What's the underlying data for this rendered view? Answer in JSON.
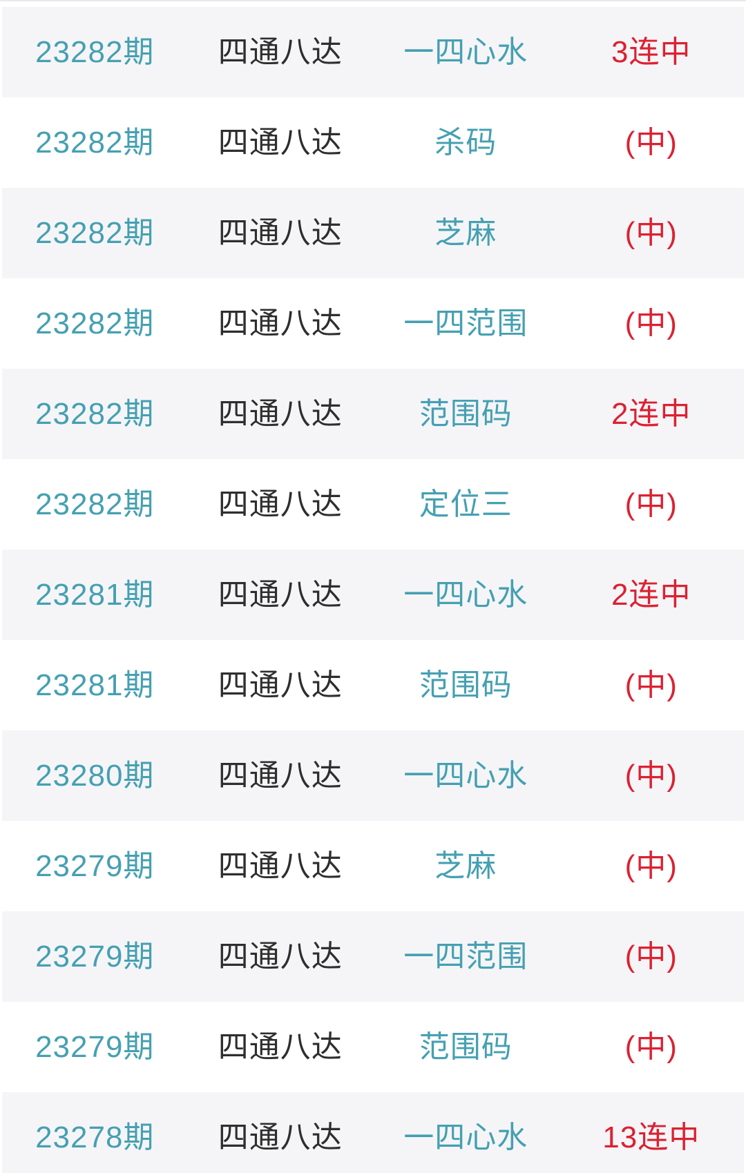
{
  "colors": {
    "teal": "#45a0b2",
    "red": "#dc2132",
    "dark": "#2e2e2e",
    "alt_row_bg": "#f5f5f7",
    "row_bg": "#ffffff",
    "hairline": "#e9e9eb"
  },
  "table": {
    "columns": [
      "period",
      "source",
      "category",
      "result"
    ],
    "rows": [
      {
        "period": "23282期",
        "source": "四通八达",
        "category": "一四心水",
        "result": "3连中"
      },
      {
        "period": "23282期",
        "source": "四通八达",
        "category": "杀码",
        "result": "(中)"
      },
      {
        "period": "23282期",
        "source": "四通八达",
        "category": "芝麻",
        "result": "(中)"
      },
      {
        "period": "23282期",
        "source": "四通八达",
        "category": "一四范围",
        "result": "(中)"
      },
      {
        "period": "23282期",
        "source": "四通八达",
        "category": "范围码",
        "result": "2连中"
      },
      {
        "period": "23282期",
        "source": "四通八达",
        "category": "定位三",
        "result": "(中)"
      },
      {
        "period": "23281期",
        "source": "四通八达",
        "category": "一四心水",
        "result": "2连中"
      },
      {
        "period": "23281期",
        "source": "四通八达",
        "category": "范围码",
        "result": "(中)"
      },
      {
        "period": "23280期",
        "source": "四通八达",
        "category": "一四心水",
        "result": "(中)"
      },
      {
        "period": "23279期",
        "source": "四通八达",
        "category": "芝麻",
        "result": "(中)"
      },
      {
        "period": "23279期",
        "source": "四通八达",
        "category": "一四范围",
        "result": "(中)"
      },
      {
        "period": "23279期",
        "source": "四通八达",
        "category": "范围码",
        "result": "(中)"
      },
      {
        "period": "23278期",
        "source": "四通八达",
        "category": "一四心水",
        "result": "13连中"
      }
    ]
  }
}
